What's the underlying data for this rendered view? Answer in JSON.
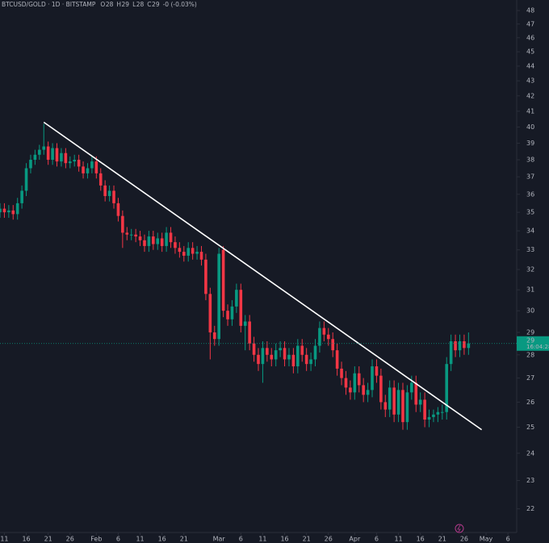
{
  "chart_data": {
    "type": "candlestick",
    "title": "BTCUSD/GOLD · 1D · BITSTAMP",
    "ohlc_status": [
      {
        "label": "O",
        "value": "28"
      },
      {
        "label": "H",
        "value": "29"
      },
      {
        "label": "L",
        "value": "28"
      },
      {
        "label": "C",
        "value": "29"
      }
    ],
    "change": "-0 (-0.03%)",
    "up_color": "#089981",
    "down_color": "#f23645",
    "log_scale": true,
    "grid": false,
    "ylim": [
      21.2,
      48.8
    ],
    "yticks": [
      22,
      23,
      24,
      25,
      26,
      27,
      28,
      29,
      30,
      31,
      32,
      33,
      34,
      35,
      36,
      37,
      38,
      39,
      40,
      41,
      42,
      43,
      44,
      45,
      46,
      47,
      48
    ],
    "xlim": [
      "Jan 10",
      "May 8"
    ],
    "xticks": [
      {
        "value": "Jan 11",
        "label": "11"
      },
      {
        "value": "Jan 16",
        "label": "16"
      },
      {
        "value": "Jan 21",
        "label": "21"
      },
      {
        "value": "Jan 26",
        "label": "26"
      },
      {
        "value": "Feb 1",
        "label": "Feb"
      },
      {
        "value": "Feb 6",
        "label": "6"
      },
      {
        "value": "Feb 11",
        "label": "11"
      },
      {
        "value": "Feb 16",
        "label": "16"
      },
      {
        "value": "Feb 21",
        "label": "21"
      },
      {
        "value": "Mar 1",
        "label": "Mar"
      },
      {
        "value": "Mar 6",
        "label": "6"
      },
      {
        "value": "Mar 11",
        "label": "11"
      },
      {
        "value": "Mar 16",
        "label": "16"
      },
      {
        "value": "Mar 21",
        "label": "21"
      },
      {
        "value": "Mar 26",
        "label": "26"
      },
      {
        "value": "Apr 1",
        "label": "Apr"
      },
      {
        "value": "Apr 6",
        "label": "6"
      },
      {
        "value": "Apr 11",
        "label": "11"
      },
      {
        "value": "Apr 16",
        "label": "16"
      },
      {
        "value": "Apr 21",
        "label": "21"
      },
      {
        "value": "Apr 26",
        "label": "26"
      },
      {
        "value": "May 1",
        "label": "May"
      },
      {
        "value": "May 6",
        "label": "6"
      }
    ],
    "x": [
      "Jan 10",
      "Jan 11",
      "Jan 12",
      "Jan 13",
      "Jan 14",
      "Jan 15",
      "Jan 16",
      "Jan 17",
      "Jan 18",
      "Jan 19",
      "Jan 20",
      "Jan 21",
      "Jan 22",
      "Jan 23",
      "Jan 24",
      "Jan 25",
      "Jan 26",
      "Jan 27",
      "Jan 28",
      "Jan 29",
      "Jan 30",
      "Jan 31",
      "Feb 1",
      "Feb 2",
      "Feb 3",
      "Feb 4",
      "Feb 5",
      "Feb 6",
      "Feb 7",
      "Feb 8",
      "Feb 9",
      "Feb 10",
      "Feb 11",
      "Feb 12",
      "Feb 13",
      "Feb 14",
      "Feb 15",
      "Feb 16",
      "Feb 17",
      "Feb 18",
      "Feb 19",
      "Feb 20",
      "Feb 21",
      "Feb 22",
      "Feb 23",
      "Feb 24",
      "Feb 25",
      "Feb 26",
      "Feb 27",
      "Feb 28",
      "Mar 1",
      "Mar 2",
      "Mar 3",
      "Mar 4",
      "Mar 5",
      "Mar 6",
      "Mar 7",
      "Mar 8",
      "Mar 9",
      "Mar 10",
      "Mar 11",
      "Mar 12",
      "Mar 13",
      "Mar 14",
      "Mar 15",
      "Mar 16",
      "Mar 17",
      "Mar 18",
      "Mar 19",
      "Mar 20",
      "Mar 21",
      "Mar 22",
      "Mar 23",
      "Mar 24",
      "Mar 25",
      "Mar 26",
      "Mar 27",
      "Mar 28",
      "Mar 29",
      "Mar 30",
      "Mar 31",
      "Apr 1",
      "Apr 2",
      "Apr 3",
      "Apr 4",
      "Apr 5",
      "Apr 6",
      "Apr 7",
      "Apr 8",
      "Apr 9",
      "Apr 10",
      "Apr 11",
      "Apr 12",
      "Apr 13",
      "Apr 14",
      "Apr 15",
      "Apr 16",
      "Apr 17",
      "Apr 18",
      "Apr 19",
      "Apr 20",
      "Apr 21",
      "Apr 22",
      "Apr 23",
      "Apr 24",
      "Apr 25",
      "Apr 26",
      "Apr 27"
    ],
    "open": [
      35.0,
      35.2,
      35.0,
      35.1,
      34.9,
      35.5,
      36.2,
      37.5,
      38.0,
      38.3,
      38.6,
      38.8,
      38.0,
      38.7,
      37.9,
      38.4,
      37.8,
      37.9,
      38.0,
      37.6,
      37.2,
      37.5,
      37.9,
      37.2,
      36.5,
      35.9,
      36.2,
      35.5,
      34.8,
      33.9,
      33.8,
      33.8,
      33.7,
      33.5,
      33.2,
      33.7,
      33.3,
      33.6,
      33.2,
      33.9,
      33.4,
      33.1,
      32.9,
      32.7,
      33.1,
      32.8,
      32.9,
      32.5,
      30.8,
      29.0,
      28.7,
      33.0,
      30.0,
      29.6,
      30.2,
      31.0,
      29.3,
      29.5,
      28.5,
      28.0,
      27.6,
      28.3,
      28.0,
      27.8,
      28.2,
      28.3,
      27.8,
      28.0,
      27.5,
      28.4,
      28.0,
      27.6,
      27.8,
      28.4,
      29.2,
      28.9,
      28.7,
      28.2,
      27.4,
      27.0,
      26.6,
      26.4,
      27.2,
      26.7,
      26.3,
      26.5,
      27.5,
      27.1,
      26.0,
      25.7,
      26.6,
      25.5,
      26.5,
      25.2,
      26.4,
      26.8,
      25.9,
      26.1,
      25.3,
      25.4,
      25.5,
      25.6,
      25.6,
      27.6,
      28.6,
      28.2,
      28.6,
      28.3
    ],
    "high": [
      35.5,
      35.5,
      35.4,
      35.4,
      35.8,
      36.5,
      37.8,
      38.3,
      38.6,
      38.9,
      40.2,
      39.1,
      39.0,
      39.0,
      38.7,
      38.7,
      38.2,
      38.3,
      38.3,
      37.9,
      37.8,
      38.2,
      38.2,
      37.5,
      36.8,
      36.5,
      36.5,
      35.8,
      35.1,
      34.2,
      34.1,
      34.1,
      34.0,
      33.8,
      34.0,
      34.0,
      33.9,
      33.9,
      34.2,
      34.2,
      33.7,
      33.4,
      33.2,
      33.4,
      33.4,
      33.2,
      33.2,
      32.8,
      31.1,
      29.3,
      33.1,
      33.2,
      30.3,
      30.5,
      31.3,
      31.3,
      29.8,
      29.8,
      28.8,
      28.3,
      28.6,
      28.6,
      28.3,
      28.5,
      28.6,
      28.6,
      28.3,
      28.3,
      28.7,
      28.7,
      28.3,
      28.1,
      28.7,
      29.5,
      29.5,
      29.2,
      29.0,
      28.5,
      27.7,
      27.3,
      26.9,
      27.5,
      27.5,
      27.0,
      26.8,
      27.8,
      27.8,
      27.4,
      26.3,
      26.9,
      26.9,
      26.8,
      26.8,
      26.7,
      27.1,
      27.1,
      26.4,
      26.4,
      25.7,
      25.7,
      25.8,
      25.9,
      27.9,
      28.9,
      28.9,
      28.9,
      28.9,
      29.0
    ],
    "low": [
      34.7,
      34.7,
      34.7,
      34.6,
      34.6,
      35.2,
      35.9,
      37.2,
      37.7,
      38.0,
      38.3,
      37.7,
      37.7,
      37.6,
      37.6,
      37.5,
      37.5,
      37.6,
      37.3,
      36.9,
      36.9,
      37.2,
      36.9,
      36.2,
      35.6,
      35.6,
      35.2,
      34.5,
      33.1,
      33.5,
      33.5,
      33.4,
      33.2,
      32.9,
      32.9,
      33.0,
      33.0,
      32.9,
      32.9,
      33.1,
      32.8,
      32.6,
      32.4,
      32.4,
      32.5,
      32.5,
      32.2,
      30.5,
      27.8,
      28.4,
      28.4,
      29.7,
      29.3,
      29.3,
      29.9,
      29.0,
      28.2,
      28.2,
      27.7,
      27.3,
      26.8,
      27.7,
      27.5,
      27.5,
      27.9,
      27.5,
      27.5,
      27.2,
      27.2,
      27.7,
      27.3,
      27.3,
      27.5,
      28.1,
      28.6,
      28.4,
      27.9,
      27.1,
      26.7,
      26.3,
      26.1,
      26.1,
      26.4,
      26.0,
      26.0,
      26.2,
      26.8,
      25.7,
      25.4,
      25.4,
      25.2,
      25.2,
      24.9,
      24.9,
      26.1,
      25.6,
      25.6,
      25.0,
      25.0,
      25.2,
      25.2,
      25.3,
      25.3,
      27.3,
      27.9,
      27.9,
      28.0,
      28.0
    ],
    "close": [
      35.2,
      35.0,
      35.1,
      34.9,
      35.5,
      36.2,
      37.5,
      38.0,
      38.3,
      38.6,
      38.8,
      38.0,
      38.7,
      37.9,
      38.4,
      37.8,
      37.9,
      38.0,
      37.6,
      37.2,
      37.5,
      37.9,
      37.2,
      36.5,
      35.9,
      36.2,
      35.5,
      34.8,
      33.9,
      33.8,
      33.8,
      33.7,
      33.5,
      33.2,
      33.7,
      33.3,
      33.6,
      33.2,
      33.9,
      33.4,
      33.1,
      32.9,
      32.7,
      33.1,
      32.8,
      32.9,
      32.5,
      30.8,
      29.0,
      28.7,
      32.8,
      30.0,
      29.6,
      30.2,
      31.0,
      29.3,
      29.5,
      28.5,
      28.0,
      27.6,
      28.3,
      28.0,
      27.8,
      28.2,
      28.3,
      27.8,
      28.0,
      27.5,
      28.4,
      28.0,
      27.6,
      27.8,
      28.4,
      29.2,
      28.9,
      28.7,
      28.2,
      27.4,
      27.0,
      26.6,
      26.4,
      27.2,
      26.7,
      26.3,
      26.5,
      27.5,
      27.1,
      26.0,
      25.7,
      26.6,
      25.5,
      26.5,
      25.2,
      26.4,
      26.8,
      25.9,
      26.1,
      25.3,
      25.4,
      25.5,
      25.6,
      25.6,
      27.6,
      28.6,
      28.2,
      28.6,
      28.3,
      28.5
    ],
    "price_label": {
      "value": 28.5,
      "label": "29"
    },
    "countdown": "16:04:28",
    "trendline": {
      "x": [
        "Jan 20",
        "Apr 30"
      ],
      "y": [
        40.3,
        24.9
      ],
      "color": "#ffffff"
    }
  }
}
